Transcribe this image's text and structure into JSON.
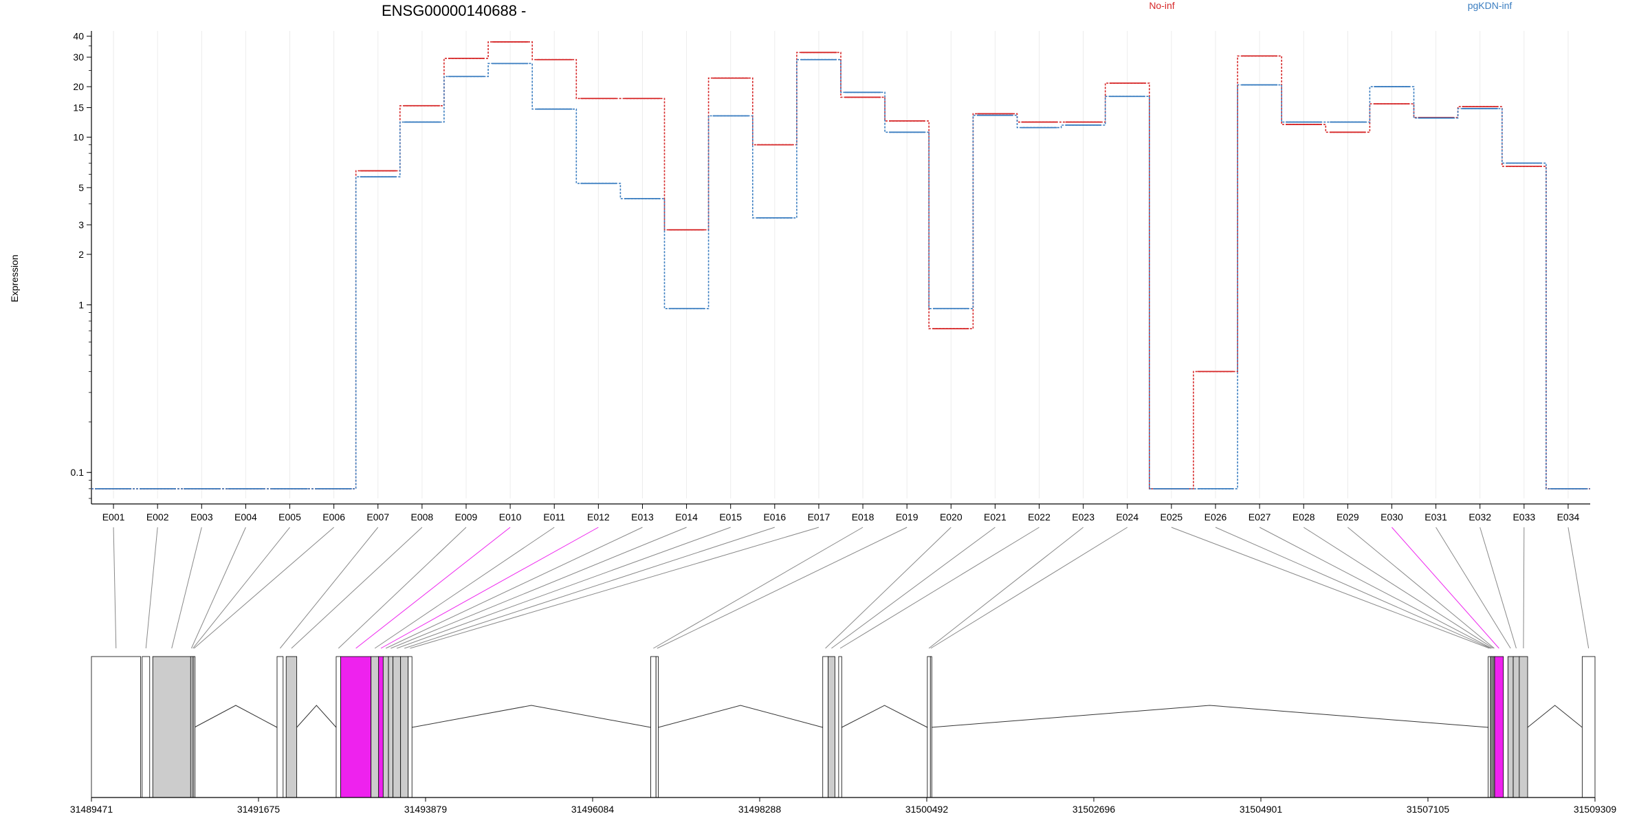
{
  "chart_data": {
    "type": "line",
    "title": "ENSG00000140688 -",
    "ylabel": "Expression",
    "yscale": "log",
    "ylim": [
      0.07,
      43
    ],
    "yticks": [
      0.1,
      1,
      2,
      3,
      5,
      10,
      15,
      20,
      30,
      40
    ],
    "categories": [
      "E001",
      "E002",
      "E003",
      "E004",
      "E005",
      "E006",
      "E007",
      "E008",
      "E009",
      "E010",
      "E011",
      "E012",
      "E013",
      "E014",
      "E015",
      "E016",
      "E017",
      "E018",
      "E019",
      "E020",
      "E021",
      "E022",
      "E023",
      "E024",
      "E025",
      "E026",
      "E027",
      "E028",
      "E029",
      "E030",
      "E031",
      "E032",
      "E033",
      "E034"
    ],
    "series": [
      {
        "name": "No-inf",
        "color": "#d62728",
        "values": [
          0.08,
          0.08,
          0.08,
          0.08,
          0.08,
          0.08,
          6.3,
          15.4,
          29.5,
          37.0,
          29.0,
          17.0,
          17.0,
          2.8,
          22.5,
          9.0,
          32.0,
          17.3,
          12.5,
          0.72,
          13.8,
          12.3,
          12.3,
          21.0,
          0.08,
          0.4,
          30.5,
          11.9,
          10.7,
          15.8,
          13.1,
          15.2,
          6.7,
          0.08
        ]
      },
      {
        "name": "pgKDN-inf",
        "color": "#3a7dc0",
        "values": [
          0.08,
          0.08,
          0.08,
          0.08,
          0.08,
          0.08,
          5.8,
          12.3,
          23.0,
          27.5,
          14.7,
          5.3,
          4.3,
          0.95,
          13.4,
          3.3,
          29.0,
          18.5,
          10.7,
          0.95,
          13.5,
          11.4,
          11.8,
          17.5,
          0.08,
          0.08,
          20.5,
          12.3,
          12.3,
          20.0,
          13.0,
          14.8,
          7.0,
          0.08
        ]
      }
    ],
    "genomic_axis": {
      "tick_labels": [
        "31489471",
        "31491675",
        "31493879",
        "31496084",
        "31498288",
        "31500492",
        "31502696",
        "31504901",
        "31507105",
        "31509309"
      ]
    },
    "highlight_color": "#ee22ee",
    "highlighted_exons": [
      "E010",
      "E012",
      "E030"
    ]
  }
}
